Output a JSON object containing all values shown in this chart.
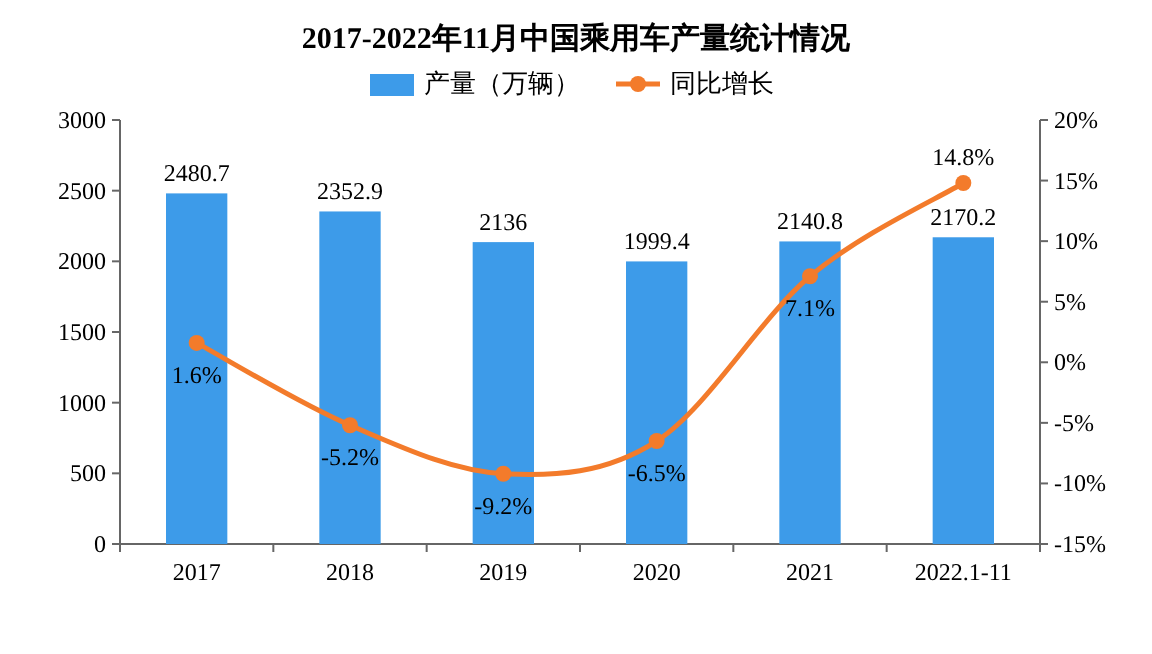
{
  "chart_data": {
    "type": "bar",
    "title": "2017-2022年11月中国乘用车产量统计情况",
    "categories": [
      "2017",
      "2018",
      "2019",
      "2020",
      "2021",
      "2022.1-11"
    ],
    "series": [
      {
        "name": "产量（万辆）",
        "color": "#3d9be9",
        "values": [
          2480.7,
          2352.9,
          2136,
          1999.4,
          2140.8,
          2170.2
        ],
        "value_labels": [
          "2480.7",
          "2352.9",
          "2136",
          "1999.4",
          "2140.8",
          "2170.2"
        ]
      },
      {
        "name": "同比增长",
        "type": "line",
        "axis": "y2",
        "color": "#f37b2b",
        "values": [
          1.6,
          -5.2,
          -9.2,
          -6.5,
          7.1,
          14.8
        ],
        "value_labels": [
          "1.6%",
          "-5.2%",
          "-9.2%",
          "-6.5%",
          "7.1%",
          "14.8%"
        ]
      }
    ],
    "ylim": [
      0,
      3000
    ],
    "yticks": [
      0,
      500,
      1000,
      1500,
      2000,
      2500,
      3000
    ],
    "y2lim": [
      -15,
      20
    ],
    "y2ticks": [
      {
        "value": -15,
        "label": "-15%"
      },
      {
        "value": -10,
        "label": "-10%"
      },
      {
        "value": -5,
        "label": "-5%"
      },
      {
        "value": 0,
        "label": "0%"
      },
      {
        "value": 5,
        "label": "5%"
      },
      {
        "value": 10,
        "label": "10%"
      },
      {
        "value": 15,
        "label": "15%"
      },
      {
        "value": 20,
        "label": "20%"
      }
    ],
    "marker": "circle",
    "legend": "top",
    "grid": false
  }
}
